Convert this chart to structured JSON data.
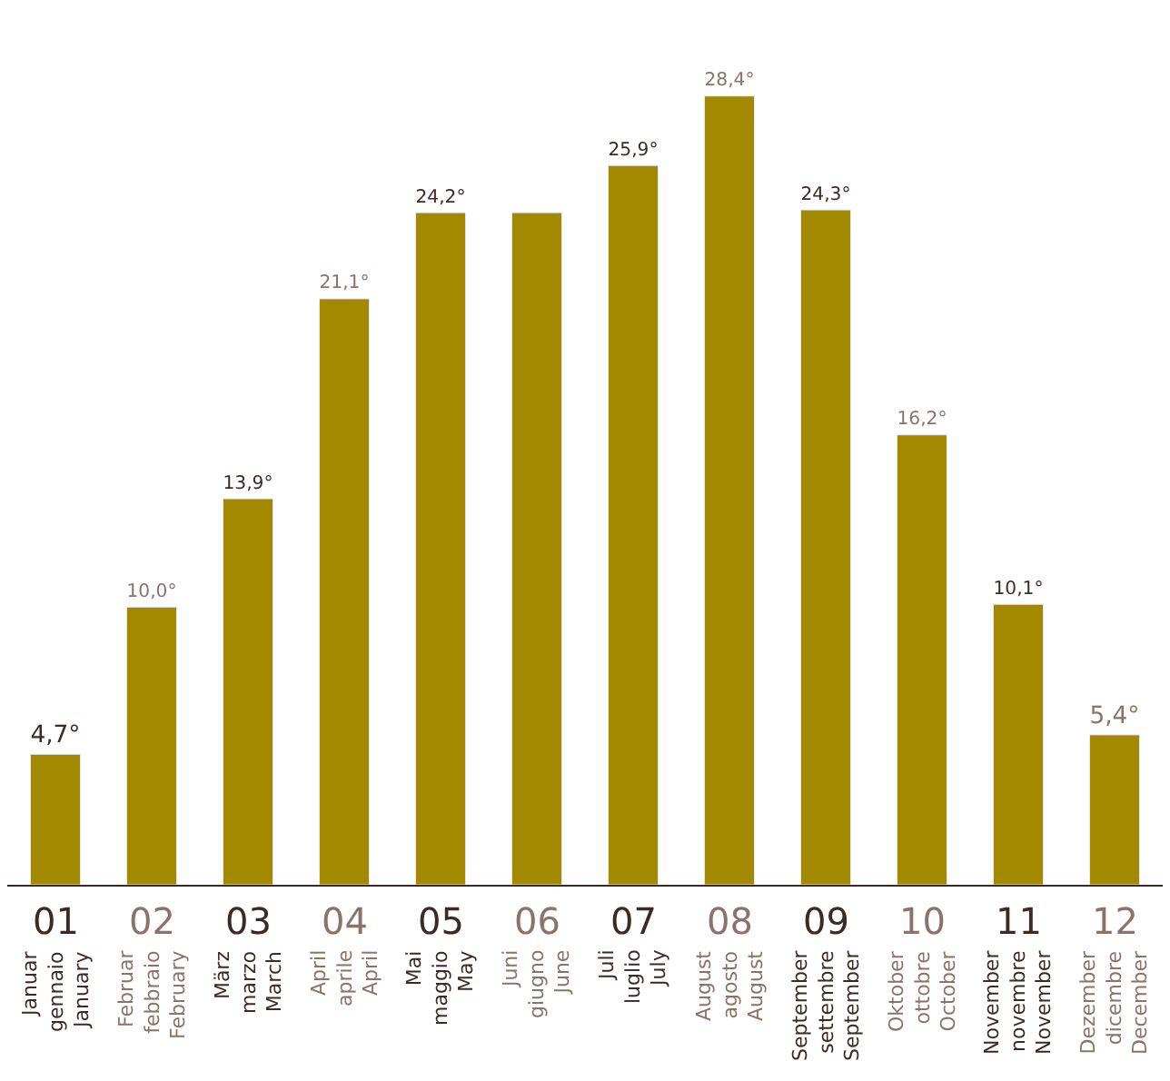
{
  "chart_data": {
    "type": "bar",
    "categories": [
      "01\nJanuar\ngennaio\nJanuary",
      "02\nFebruar\nfebbraio\nFebruary",
      "03\nMärz\nmarzo\nMarch",
      "04\nApril\naprile\nApril",
      "05\nMai\nmaggio\nMay",
      "06\nJuni\ngiugno\nJune",
      "07\nJuli\nluglio\nJuly",
      "08\nAugust\nagosto\nAugust",
      "09\nSeptember\nsettembre\nSeptember",
      "10\nOktober\nottobre\nOctober",
      "11\nNovember\nnovembre\nNovember",
      "12\nDezember\ndicembre\nDecember"
    ],
    "values": [
      4.7,
      10.0,
      13.9,
      21.1,
      24.2,
      24.2,
      25.9,
      28.4,
      24.3,
      16.2,
      10.1,
      5.4
    ],
    "value_labels": [
      "4,7°",
      "10,0°",
      "13,9°",
      "21,1°",
      "24,2°",
      null,
      "25,9°",
      "28,4°",
      "24,3°",
      "16,2°",
      "10,1°",
      "5,4°"
    ],
    "color": "#a38900",
    "legend": false
  }
}
